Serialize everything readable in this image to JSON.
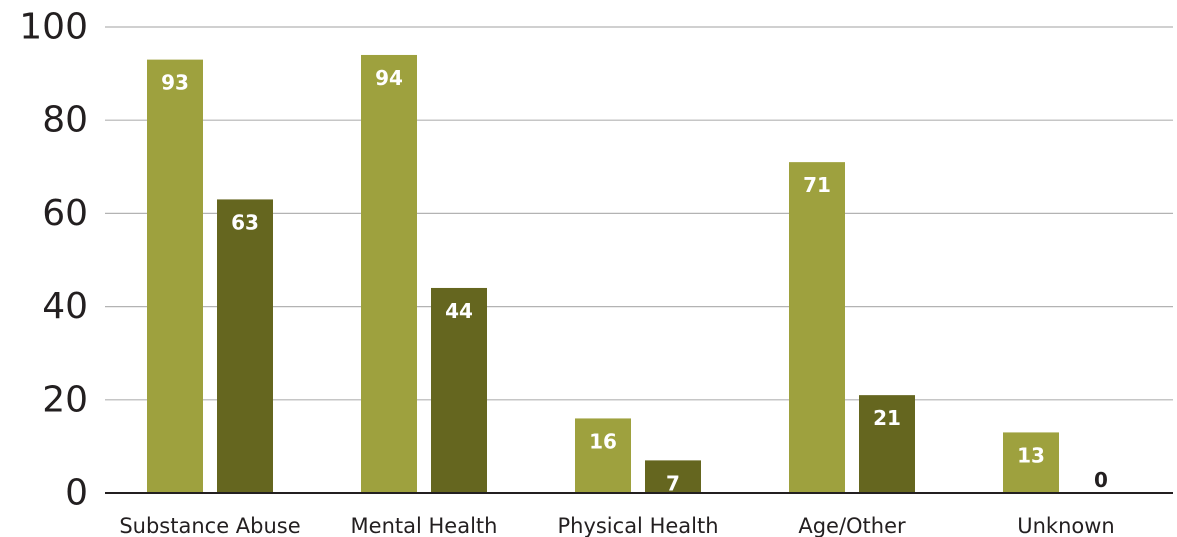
{
  "chart_data": {
    "type": "bar",
    "categories": [
      "Substance Abuse",
      "Mental Health",
      "Physical Health",
      "Age/Other",
      "Unknown"
    ],
    "series": [
      {
        "values": [
          93,
          94,
          16,
          71,
          13
        ]
      },
      {
        "values": [
          63,
          44,
          7,
          21,
          0
        ]
      }
    ],
    "ylim": [
      0,
      100
    ],
    "yticks": [
      0,
      20,
      40,
      60,
      80,
      100
    ],
    "ytick_labels": [
      "0",
      "20",
      "40",
      "60",
      "80",
      "100"
    ],
    "grid": true,
    "legend": "none",
    "colors": {
      "series": [
        "#9ea13e",
        "#65661f"
      ],
      "grid": "#b3b3b3",
      "axis": "#231f20",
      "label_on_bar": "#ffffff",
      "label_zero": "#231f20"
    }
  }
}
